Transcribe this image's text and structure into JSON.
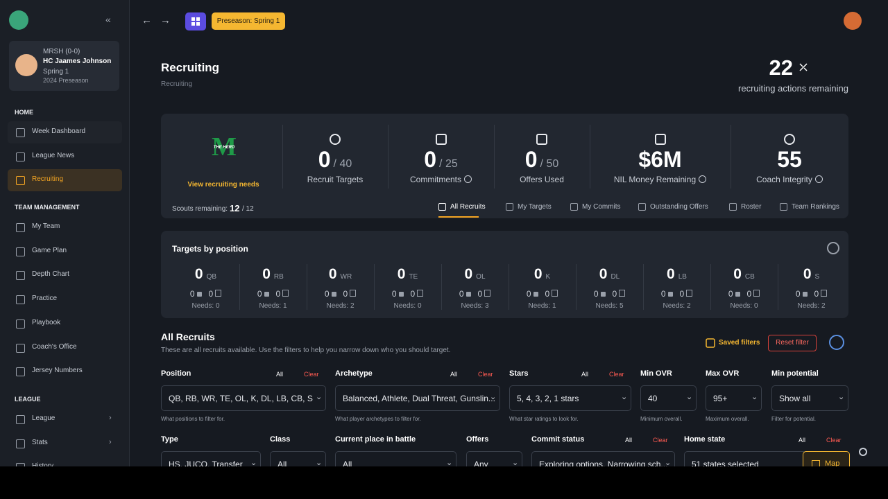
{
  "sidebar": {
    "team": "MRSH (0-0)",
    "coach": "HC Jaames Johnson",
    "week": "Spring 1",
    "season": "2024 Preseason",
    "sections": [
      {
        "title": "HOME",
        "items": [
          "Week Dashboard",
          "League News",
          "Recruiting"
        ]
      },
      {
        "title": "TEAM MANAGEMENT",
        "items": [
          "My Team",
          "Game Plan",
          "Depth Chart",
          "Practice",
          "Playbook",
          "Coach's Office",
          "Jersey Numbers"
        ]
      },
      {
        "title": "LEAGUE",
        "items": [
          "League",
          "Stats",
          "History"
        ]
      }
    ]
  },
  "topbar": {
    "badge": "Preseason: Spring 1"
  },
  "header": {
    "title": "Recruiting",
    "breadcrumb": "Recruiting",
    "actions": "22",
    "actions_label": "recruiting actions remaining"
  },
  "summary": {
    "logo_letter": "M",
    "logo_text": "THE HERD",
    "needs_link": "View recruiting needs",
    "scouts_label": "Scouts remaining:",
    "scouts": "12",
    "scouts_total": "/ 12",
    "stats": [
      {
        "value": "0",
        "total": "/ 40",
        "label": "Recruit Targets"
      },
      {
        "value": "0",
        "total": "/ 25",
        "label": "Commitments"
      },
      {
        "value": "0",
        "total": "/ 50",
        "label": "Offers Used"
      },
      {
        "value": "$6M",
        "label": "NIL Money Remaining"
      },
      {
        "value": "55",
        "label": "Coach Integrity"
      }
    ]
  },
  "tabs": [
    "All Recruits",
    "My Targets",
    "My Commits",
    "Outstanding Offers",
    "Roster",
    "Team Rankings"
  ],
  "positions": {
    "title": "Targets by position",
    "items": [
      {
        "count": "0",
        "pos": "QB",
        "commits": "0",
        "offers": "0",
        "needs": "Needs: 0"
      },
      {
        "count": "0",
        "pos": "RB",
        "commits": "0",
        "offers": "0",
        "needs": "Needs: 1"
      },
      {
        "count": "0",
        "pos": "WR",
        "commits": "0",
        "offers": "0",
        "needs": "Needs: 2"
      },
      {
        "count": "0",
        "pos": "TE",
        "commits": "0",
        "offers": "0",
        "needs": "Needs: 0"
      },
      {
        "count": "0",
        "pos": "OL",
        "commits": "0",
        "offers": "0",
        "needs": "Needs: 3"
      },
      {
        "count": "0",
        "pos": "K",
        "commits": "0",
        "offers": "0",
        "needs": "Needs: 1"
      },
      {
        "count": "0",
        "pos": "DL",
        "commits": "0",
        "offers": "0",
        "needs": "Needs: 5"
      },
      {
        "count": "0",
        "pos": "LB",
        "commits": "0",
        "offers": "0",
        "needs": "Needs: 2"
      },
      {
        "count": "0",
        "pos": "CB",
        "commits": "0",
        "offers": "0",
        "needs": "Needs: 0"
      },
      {
        "count": "0",
        "pos": "S",
        "commits": "0",
        "offers": "0",
        "needs": "Needs: 2"
      }
    ]
  },
  "recruits": {
    "title": "All Recruits",
    "description": "These are all recruits available. Use the filters to help you narrow down who you should target.",
    "saved_filters": "Saved filters",
    "reset_filter": "Reset filter",
    "filters": [
      {
        "label": "Position",
        "all": "All",
        "clear": "Clear",
        "value": "QB, RB, WR, TE, OL, K, DL, LB, CB, S",
        "help": "What positions to filter for."
      },
      {
        "label": "Archetype",
        "all": "All",
        "clear": "Clear",
        "value": "Balanced, Athlete, Dual Threat, Gunslin...",
        "help": "What player archetypes to filter for."
      },
      {
        "label": "Stars",
        "all": "All",
        "clear": "Clear",
        "value": "5, 4, 3, 2, 1 stars",
        "help": "What star ratings to look for."
      },
      {
        "label": "Min OVR",
        "value": "40",
        "help": "Minimum overall."
      },
      {
        "label": "Max OVR",
        "value": "95+",
        "help": "Maximum overall."
      },
      {
        "label": "Min potential",
        "value": "Show all",
        "help": "Filter for potential."
      },
      {
        "label": "Type",
        "value": "HS, JUCO, Transfer"
      },
      {
        "label": "Class",
        "value": "All"
      },
      {
        "label": "Current place in battle",
        "value": "All"
      },
      {
        "label": "Offers",
        "value": "Any"
      },
      {
        "label": "Commit status",
        "all": "All",
        "clear": "Clear",
        "value": "Exploring options, Narrowing sch..."
      },
      {
        "label": "Home state",
        "all": "All",
        "clear": "Clear",
        "value": "51 states selected",
        "button": "Map"
      }
    ]
  }
}
